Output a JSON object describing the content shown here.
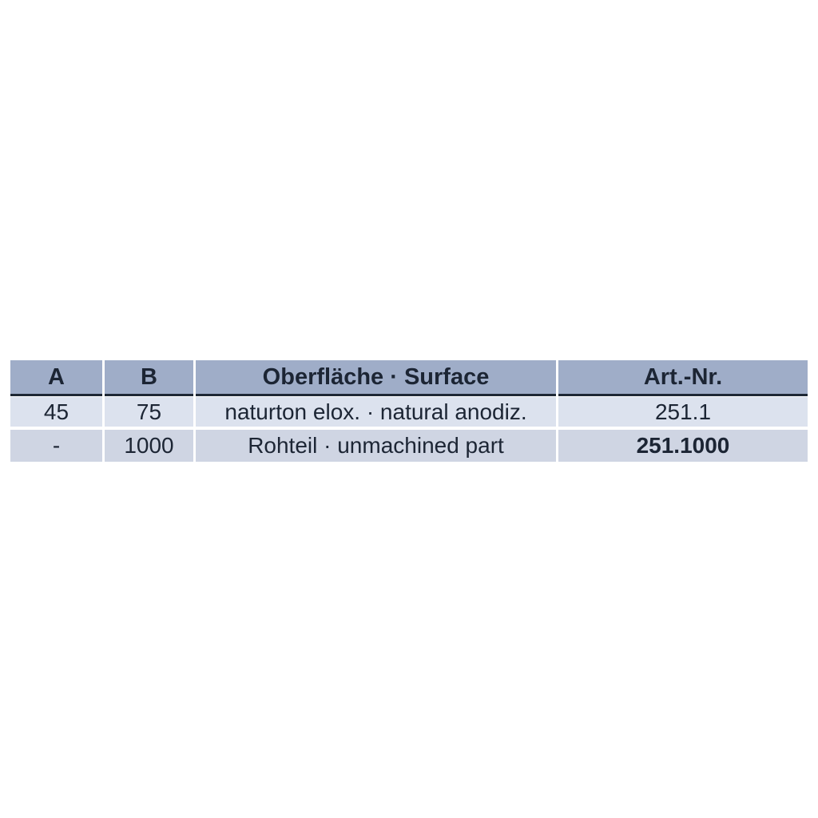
{
  "table": {
    "columns": [
      {
        "label": "A"
      },
      {
        "label": "B"
      },
      {
        "label": "Oberfläche · Surface"
      },
      {
        "label": "Art.-Nr."
      }
    ],
    "rows": [
      {
        "a": "45",
        "b": "75",
        "surface": "naturton elox. · natural anodiz.",
        "art_nr": "251.1"
      },
      {
        "a": "-",
        "b": "1000",
        "surface": "Rohteil · unmachined part",
        "art_nr": "251.1000"
      }
    ]
  },
  "colors": {
    "header_bg": "#9fadc8",
    "header_border": "#1e2735",
    "row1_bg": "#dce2ee",
    "row2_bg": "#cfd5e3",
    "text": "#1c2534",
    "page_bg": "#ffffff"
  }
}
